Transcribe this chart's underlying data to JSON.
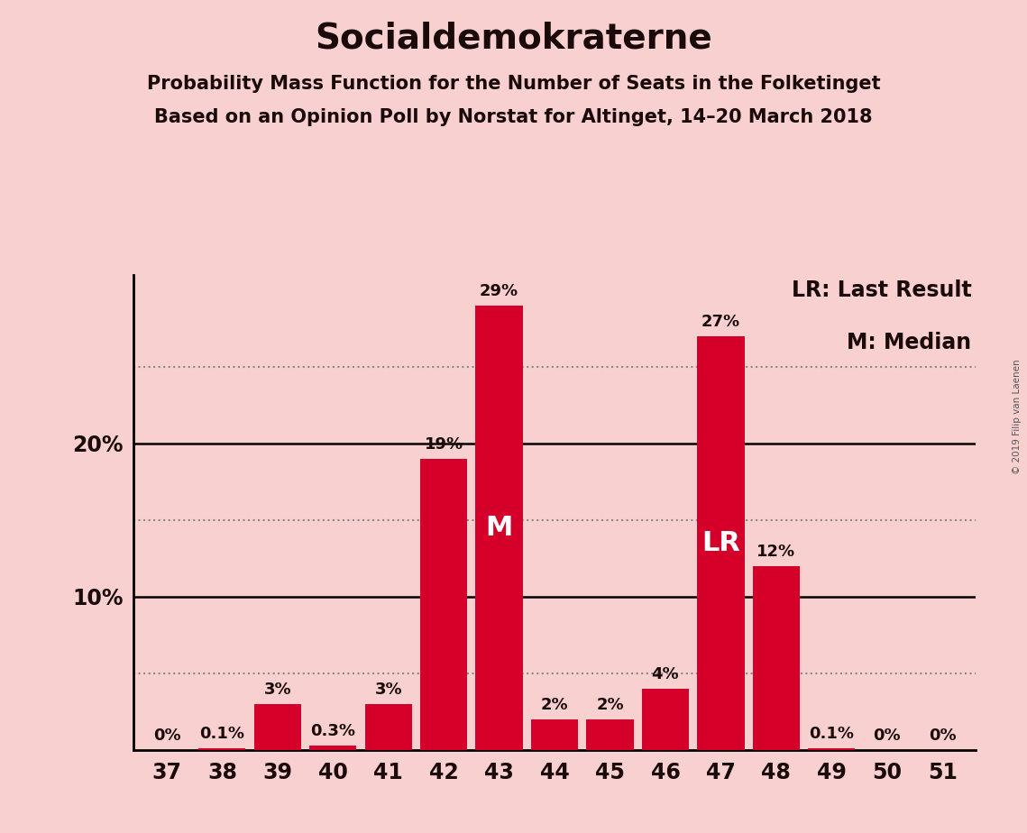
{
  "title": "Socialdemokraterne",
  "subtitle1": "Probability Mass Function for the Number of Seats in the Folketinget",
  "subtitle2": "Based on an Opinion Poll by Norstat for Altinget, 14–20 March 2018",
  "watermark": "© 2019 Filip van Laenen",
  "categories": [
    37,
    38,
    39,
    40,
    41,
    42,
    43,
    44,
    45,
    46,
    47,
    48,
    49,
    50,
    51
  ],
  "values": [
    0.0,
    0.1,
    3.0,
    0.3,
    3.0,
    19.0,
    29.0,
    2.0,
    2.0,
    4.0,
    27.0,
    12.0,
    0.1,
    0.0,
    0.0
  ],
  "labels": [
    "0%",
    "0.1%",
    "3%",
    "0.3%",
    "3%",
    "19%",
    "29%",
    "2%",
    "2%",
    "4%",
    "27%",
    "12%",
    "0.1%",
    "0%",
    "0%"
  ],
  "bar_color": "#d4002a",
  "background_color": "#f9d0d0",
  "median_bar": 43,
  "last_result_bar": 47,
  "legend_lr": "LR: Last Result",
  "legend_m": "M: Median",
  "ylim": [
    0,
    31
  ],
  "solid_lines": [
    10,
    20
  ],
  "dotted_lines": [
    5,
    15,
    25
  ],
  "title_fontsize": 28,
  "subtitle_fontsize": 15,
  "label_fontsize": 13,
  "tick_fontsize": 17,
  "legend_fontsize": 17,
  "inbar_fontsize": 22,
  "text_color": "#1a0a0a"
}
